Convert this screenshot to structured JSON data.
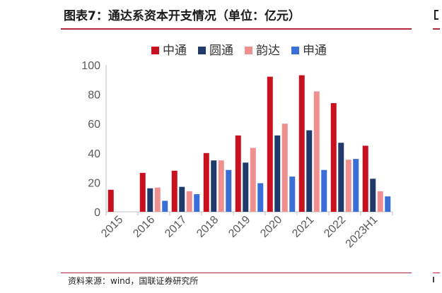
{
  "header": {
    "title": "图表7：通达系资本开支情况（单位：亿元）"
  },
  "footer": {
    "source": "资料来源：wind，国联证券研究所"
  },
  "chart_data": {
    "type": "bar",
    "title": "图表7：通达系资本开支情况（单位：亿元）",
    "xlabel": "",
    "ylabel": "",
    "ylim": [
      0,
      100
    ],
    "yticks": [
      0,
      20,
      40,
      60,
      80,
      100
    ],
    "grid": false,
    "legend_position": "top",
    "categories": [
      "2015",
      "2016",
      "2017",
      "2018",
      "2019",
      "2020",
      "2021",
      "2022",
      "2023H1"
    ],
    "series": [
      {
        "name": "中通",
        "color": "#c8101e",
        "values": [
          15,
          26.5,
          28,
          40,
          52,
          92,
          93,
          74,
          45
        ]
      },
      {
        "name": "圆通",
        "color": "#1f3a6b",
        "values": [
          0,
          16,
          17,
          35,
          33.5,
          52,
          55.5,
          47,
          22.5
        ]
      },
      {
        "name": "韵达",
        "color": "#f08f8f",
        "values": [
          0,
          16.5,
          14,
          35,
          43.5,
          60,
          82,
          35.5,
          14
        ]
      },
      {
        "name": "申通",
        "color": "#3a6fd8",
        "values": [
          0,
          7.5,
          12,
          28.5,
          19.5,
          24,
          28.5,
          36,
          10.5
        ]
      }
    ]
  }
}
